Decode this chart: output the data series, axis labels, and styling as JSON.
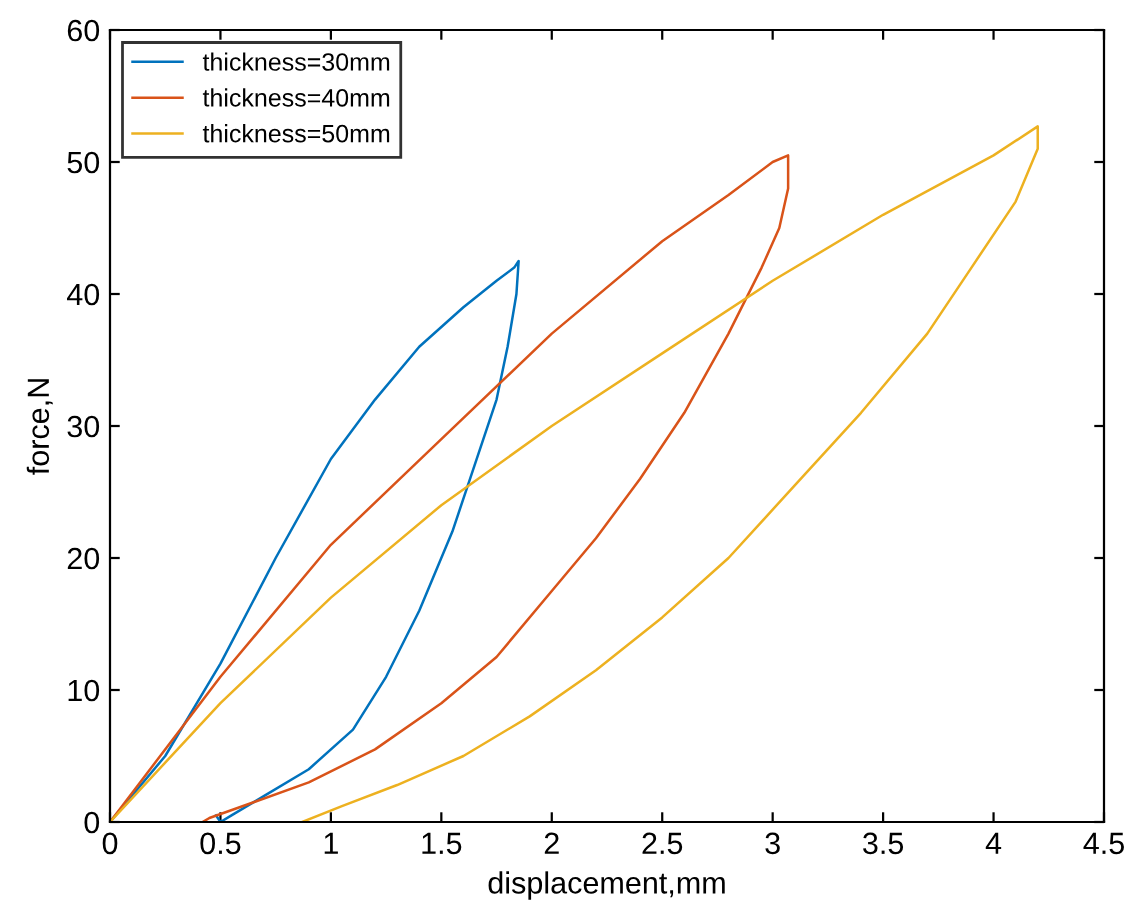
{
  "chart_data": {
    "type": "line",
    "xlabel": "displacement,mm",
    "ylabel": "force,N",
    "xlim": [
      0,
      4.5
    ],
    "ylim": [
      0,
      60
    ],
    "xticks": [
      0,
      {
        "value": 0.5,
        "label": "0.5"
      },
      1,
      {
        "value": 1.5,
        "label": "1.5"
      },
      2,
      {
        "value": 2.5,
        "label": "2.5"
      },
      3,
      {
        "value": 3.5,
        "label": "3.5"
      },
      4,
      {
        "value": 4.5,
        "label": "4.5"
      }
    ],
    "yticks": [
      0,
      10,
      20,
      30,
      40,
      50,
      60
    ],
    "grid": false,
    "legend": "top left",
    "marker": "none",
    "line_style": "solid",
    "series": [
      {
        "name": "thickness=30mm",
        "color": "#0072bd",
        "x": [
          0,
          0.25,
          0.5,
          0.75,
          1,
          1.2,
          1.4,
          1.6,
          1.75,
          1.83,
          1.85,
          1.84,
          1.8,
          1.75,
          1.65,
          1.55,
          1.4,
          1.25,
          1.1,
          0.9,
          0.7,
          0.55,
          0.5,
          0.48
        ],
        "values": [
          0,
          5,
          12,
          20,
          27.5,
          32,
          36,
          39,
          41,
          42,
          42.5,
          40,
          36,
          32,
          27,
          22,
          16,
          11,
          7,
          4,
          2,
          0.5,
          0,
          0.5
        ]
      },
      {
        "name": "thickness=40mm",
        "color": "#d95319",
        "x": [
          0,
          0.5,
          1,
          1.5,
          2,
          2.5,
          2.8,
          3,
          3.07,
          3.07,
          3.03,
          2.95,
          2.8,
          2.6,
          2.4,
          2.2,
          2,
          1.75,
          1.5,
          1.2,
          0.9,
          0.65,
          0.45,
          0.42
        ],
        "values": [
          0,
          11,
          21,
          29,
          37,
          44,
          47.5,
          50,
          50.5,
          48,
          45,
          42,
          37,
          31,
          26,
          21.5,
          17.5,
          12.5,
          9,
          5.5,
          3,
          1.5,
          0.3,
          0
        ]
      },
      {
        "name": "thickness=50mm",
        "color": "#edb120",
        "x": [
          0,
          0.5,
          1,
          1.5,
          2,
          2.5,
          3,
          3.5,
          4,
          4.2,
          4.2,
          4.1,
          3.9,
          3.7,
          3.4,
          3.1,
          2.8,
          2.5,
          2.2,
          1.9,
          1.6,
          1.3,
          1.05,
          0.87
        ],
        "values": [
          0,
          9,
          17,
          24,
          30,
          35.5,
          41,
          46,
          50.5,
          52.7,
          51,
          47,
          42,
          37,
          31,
          25.5,
          20,
          15.5,
          11.5,
          8,
          5,
          2.8,
          1.2,
          0
        ]
      }
    ]
  }
}
